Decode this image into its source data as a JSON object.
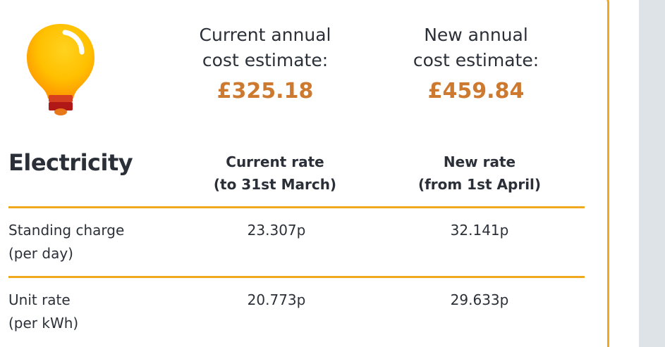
{
  "summary": {
    "current": {
      "label_line1": "Current annual",
      "label_line2": "cost estimate:",
      "value": "£325.18"
    },
    "new": {
      "label_line1": "New annual",
      "label_line2": "cost estimate:",
      "value": "£459.84"
    }
  },
  "table": {
    "title": "Electricity",
    "headers": {
      "current_line1": "Current rate",
      "current_line2": "(to 31st March)",
      "new_line1": "New rate",
      "new_line2": "(from 1st April)"
    },
    "rows": [
      {
        "label_line1": "Standing charge",
        "label_line2": "(per day)",
        "current": "23.307p",
        "new": "32.141p"
      },
      {
        "label_line1": "Unit rate",
        "label_line2": "(per kWh)",
        "current": "20.773p",
        "new": "29.633p"
      }
    ]
  },
  "icons": {
    "bulb": "lightbulb-icon"
  },
  "colors": {
    "accent_border": "#f0a81e",
    "price": "#cd7a30",
    "text": "#2b3038",
    "side_panel": "#dde3e6"
  }
}
